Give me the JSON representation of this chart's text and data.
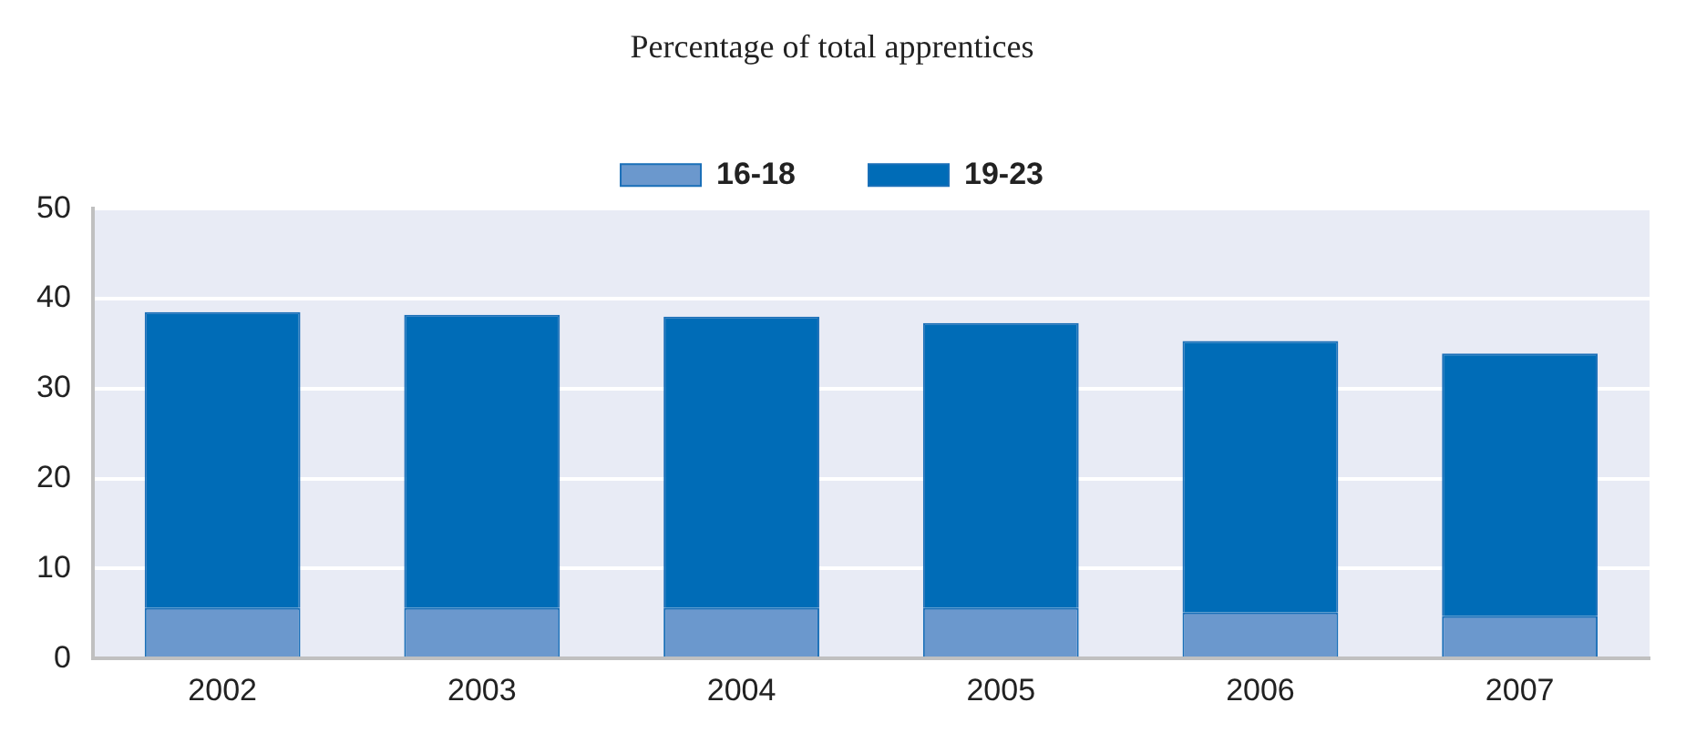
{
  "chart_data": {
    "type": "bar",
    "title": "Percentage of total apprentices",
    "categories": [
      "2002",
      "2003",
      "2004",
      "2005",
      "2006",
      "2007"
    ],
    "series": [
      {
        "name": "16-18",
        "color": "#6b98cd",
        "values": [
          5.6,
          5.6,
          5.6,
          5.6,
          5.1,
          4.7
        ]
      },
      {
        "name": "19-23",
        "color": "#006cb7",
        "values": [
          32.9,
          32.6,
          32.4,
          31.7,
          30.2,
          29.2
        ]
      }
    ],
    "stacked": true,
    "ylim": [
      0,
      50
    ],
    "yticks": [
      0,
      10,
      20,
      30,
      40,
      50
    ],
    "grid": "y",
    "legend": "top"
  }
}
